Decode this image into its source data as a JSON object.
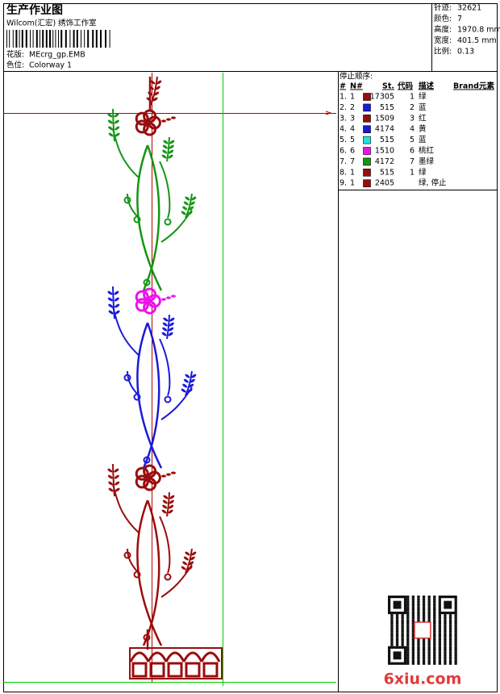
{
  "header": {
    "title": "生产作业图",
    "studio": "Wilcom(汇宏) 绣饰工作室",
    "design_label": "花版:",
    "design": "MEcrg_gp.EMB",
    "colorway_label": "色位:",
    "colorway": "Colorway 1"
  },
  "stats": [
    {
      "label": "针迹:",
      "value": "32621"
    },
    {
      "label": "颜色:",
      "value": "7"
    },
    {
      "label": "高度:",
      "value": "1970.8 mm"
    },
    {
      "label": "宽度:",
      "value": "401.5 mm"
    },
    {
      "label": "比例:",
      "value": "0.13"
    }
  ],
  "table": {
    "title": "停止顺序:",
    "columns": [
      "#",
      "N#",
      "St.",
      "代码",
      "描述",
      "Brand",
      "元素"
    ],
    "rows": [
      {
        "num": "1.",
        "n": "1",
        "color": "#9a0c0c",
        "st": "17305",
        "code": "1",
        "desc": "绿"
      },
      {
        "num": "2.",
        "n": "2",
        "color": "#1a1ad8",
        "st": "515",
        "code": "2",
        "desc": "蓝"
      },
      {
        "num": "3.",
        "n": "3",
        "color": "#9a0c0c",
        "st": "1509",
        "code": "3",
        "desc": "红"
      },
      {
        "num": "4.",
        "n": "4",
        "color": "#1a1ad8",
        "st": "4174",
        "code": "4",
        "desc": "黄"
      },
      {
        "num": "5.",
        "n": "5",
        "color": "#22e0e0",
        "st": "515",
        "code": "5",
        "desc": "蓝"
      },
      {
        "num": "6.",
        "n": "6",
        "color": "#ee11ee",
        "st": "1510",
        "code": "6",
        "desc": "桃红"
      },
      {
        "num": "7.",
        "n": "7",
        "color": "#149614",
        "st": "4172",
        "code": "7",
        "desc": "墨绿"
      },
      {
        "num": "8.",
        "n": "1",
        "color": "#9a0c0c",
        "st": "515",
        "code": "1",
        "desc": "绿"
      },
      {
        "num": "9.",
        "n": "1",
        "color": "#9a0c0c",
        "st": "2405",
        "desc": "绿, 停止"
      }
    ]
  },
  "watermark": "6xiu.com"
}
